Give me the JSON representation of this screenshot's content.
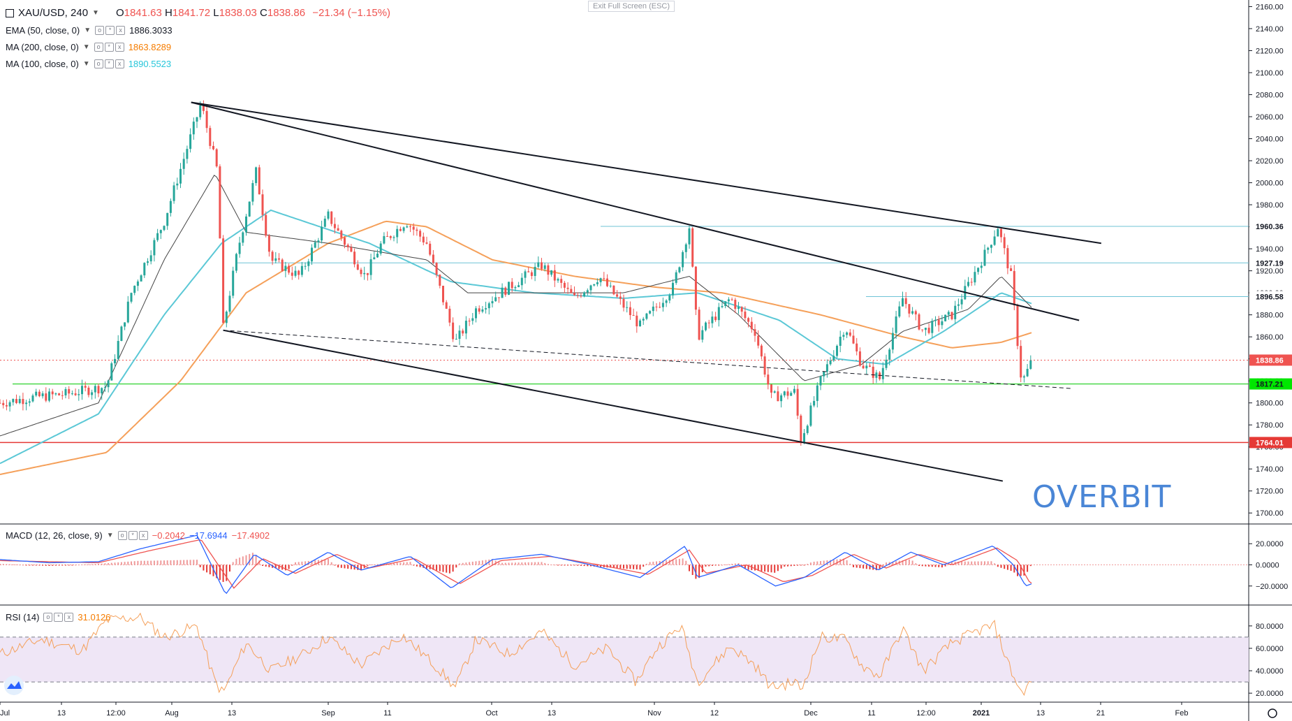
{
  "header": {
    "symbol": "XAU/USD, 240",
    "o_label": "O",
    "o": "1841.63",
    "h_label": "H",
    "h": "1841.72",
    "l_label": "L",
    "l": "1838.03",
    "c_label": "C",
    "c": "1838.86",
    "change": "−21.34 (−1.15%)",
    "exit_fullscreen": "Exit Full Screen (ESC)"
  },
  "indicators": [
    {
      "label": "EMA (50, close, 0)",
      "value": "1886.3033",
      "color": "#131722"
    },
    {
      "label": "MA (200, close, 0)",
      "value": "1863.8289",
      "color": "#f57c00"
    },
    {
      "label": "MA (100, close, 0)",
      "value": "1890.5523",
      "color": "#26c6da"
    }
  ],
  "macd_legend": {
    "label": "MACD (12, 26, close, 9)",
    "hist": "−0.2042",
    "macd": "−17.6944",
    "signal": "−17.4902"
  },
  "rsi_legend": {
    "label": "RSI (14)",
    "value": "31.0126"
  },
  "watermark": "OVERBIT",
  "colors": {
    "up": "#26a69a",
    "down": "#ef5350",
    "ema50": "#444444",
    "ma200": "#f5a05a",
    "ma100": "#5bc8d6",
    "macd": "#2962ff",
    "signal": "#ef5350",
    "rsi": "#f5a05a",
    "support": "#00c800",
    "resistance_red": "#e53935",
    "level": "#6fc3d6"
  },
  "chart_data": {
    "type": "candlestick",
    "instrument": "XAU/USD",
    "timeframe": "240",
    "price_axis": {
      "min": 1690,
      "max": 2166,
      "ticks": [
        1700,
        1720,
        1740,
        1760,
        1780,
        1800,
        1820,
        1840,
        1860,
        1880,
        1900,
        1920,
        1940,
        1960,
        1980,
        2000,
        2020,
        2040,
        2060,
        2080,
        2100,
        2120,
        2140,
        2160
      ]
    },
    "time_axis_labels": [
      "Jul",
      "13",
      "12:00",
      "Aug",
      "13",
      "Sep",
      "11",
      "Oct",
      "13",
      "Nov",
      "12",
      "Dec",
      "11",
      "12:00",
      "2021",
      "13",
      "21",
      "Feb"
    ],
    "price_path": [
      {
        "t": 0,
        "p": 1800
      },
      {
        "t": 40,
        "p": 1805
      },
      {
        "t": 80,
        "p": 1808
      },
      {
        "t": 130,
        "p": 1815
      },
      {
        "t": 160,
        "p": 1900
      },
      {
        "t": 200,
        "p": 1965
      },
      {
        "t": 245,
        "p": 2072
      },
      {
        "t": 265,
        "p": 2010
      },
      {
        "t": 272,
        "p": 1868
      },
      {
        "t": 290,
        "p": 1940
      },
      {
        "t": 312,
        "p": 2010
      },
      {
        "t": 330,
        "p": 1930
      },
      {
        "t": 365,
        "p": 1915
      },
      {
        "t": 400,
        "p": 1970
      },
      {
        "t": 445,
        "p": 1915
      },
      {
        "t": 465,
        "p": 1945
      },
      {
        "t": 495,
        "p": 1965
      },
      {
        "t": 520,
        "p": 1945
      },
      {
        "t": 555,
        "p": 1855
      },
      {
        "t": 580,
        "p": 1885
      },
      {
        "t": 620,
        "p": 1905
      },
      {
        "t": 660,
        "p": 1925
      },
      {
        "t": 700,
        "p": 1895
      },
      {
        "t": 730,
        "p": 1915
      },
      {
        "t": 780,
        "p": 1870
      },
      {
        "t": 820,
        "p": 1905
      },
      {
        "t": 840,
        "p": 1960
      },
      {
        "t": 850,
        "p": 1860
      },
      {
        "t": 890,
        "p": 1895
      },
      {
        "t": 920,
        "p": 1865
      },
      {
        "t": 940,
        "p": 1805
      },
      {
        "t": 968,
        "p": 1810
      },
      {
        "t": 976,
        "p": 1766
      },
      {
        "t": 1000,
        "p": 1820
      },
      {
        "t": 1030,
        "p": 1870
      },
      {
        "t": 1050,
        "p": 1835
      },
      {
        "t": 1072,
        "p": 1822
      },
      {
        "t": 1100,
        "p": 1895
      },
      {
        "t": 1125,
        "p": 1865
      },
      {
        "t": 1160,
        "p": 1880
      },
      {
        "t": 1200,
        "p": 1935
      },
      {
        "t": 1216,
        "p": 1960
      },
      {
        "t": 1232,
        "p": 1915
      },
      {
        "t": 1245,
        "p": 1818
      },
      {
        "t": 1258,
        "p": 1839
      }
    ],
    "ema50_path": [
      {
        "t": 0,
        "p": 1770
      },
      {
        "t": 120,
        "p": 1800
      },
      {
        "t": 200,
        "p": 1930
      },
      {
        "t": 262,
        "p": 2008
      },
      {
        "t": 300,
        "p": 1955
      },
      {
        "t": 400,
        "p": 1945
      },
      {
        "t": 520,
        "p": 1930
      },
      {
        "t": 570,
        "p": 1900
      },
      {
        "t": 650,
        "p": 1900
      },
      {
        "t": 760,
        "p": 1900
      },
      {
        "t": 840,
        "p": 1915
      },
      {
        "t": 900,
        "p": 1880
      },
      {
        "t": 980,
        "p": 1820
      },
      {
        "t": 1050,
        "p": 1835
      },
      {
        "t": 1100,
        "p": 1865
      },
      {
        "t": 1180,
        "p": 1885
      },
      {
        "t": 1220,
        "p": 1915
      },
      {
        "t": 1258,
        "p": 1886
      }
    ],
    "ma100_path": [
      {
        "t": 0,
        "p": 1745
      },
      {
        "t": 120,
        "p": 1790
      },
      {
        "t": 200,
        "p": 1880
      },
      {
        "t": 270,
        "p": 1945
      },
      {
        "t": 330,
        "p": 1975
      },
      {
        "t": 450,
        "p": 1945
      },
      {
        "t": 550,
        "p": 1910
      },
      {
        "t": 650,
        "p": 1900
      },
      {
        "t": 760,
        "p": 1895
      },
      {
        "t": 850,
        "p": 1900
      },
      {
        "t": 950,
        "p": 1875
      },
      {
        "t": 1020,
        "p": 1840
      },
      {
        "t": 1080,
        "p": 1835
      },
      {
        "t": 1150,
        "p": 1865
      },
      {
        "t": 1220,
        "p": 1900
      },
      {
        "t": 1258,
        "p": 1890
      }
    ],
    "ma200_path": [
      {
        "t": 0,
        "p": 1735
      },
      {
        "t": 130,
        "p": 1755
      },
      {
        "t": 220,
        "p": 1820
      },
      {
        "t": 300,
        "p": 1900
      },
      {
        "t": 400,
        "p": 1945
      },
      {
        "t": 470,
        "p": 1965
      },
      {
        "t": 520,
        "p": 1960
      },
      {
        "t": 600,
        "p": 1930
      },
      {
        "t": 700,
        "p": 1915
      },
      {
        "t": 800,
        "p": 1905
      },
      {
        "t": 880,
        "p": 1900
      },
      {
        "t": 1000,
        "p": 1880
      },
      {
        "t": 1100,
        "p": 1860
      },
      {
        "t": 1160,
        "p": 1850
      },
      {
        "t": 1220,
        "p": 1855
      },
      {
        "t": 1258,
        "p": 1864
      }
    ],
    "price_levels": [
      {
        "value": 1960.36,
        "label": "1960.36",
        "kind": "level",
        "bg": "#ffffff",
        "fg": "#131722"
      },
      {
        "value": 1927.19,
        "label": "1927.19",
        "kind": "level",
        "bg": "#ffffff",
        "fg": "#131722"
      },
      {
        "value": 1896.58,
        "label": "1896.58",
        "kind": "level",
        "bg": "#ffffff",
        "fg": "#131722"
      },
      {
        "value": 1838.86,
        "label": "1838.86",
        "kind": "last",
        "bg": "#ef5350",
        "fg": "#ffffff"
      },
      {
        "value": 1817.21,
        "label": "1817.21",
        "kind": "support",
        "bg": "#00e600",
        "fg": "#131722"
      },
      {
        "value": 1764.01,
        "label": "1764.01",
        "kind": "red",
        "bg": "#e53935",
        "fg": "#ffffff"
      }
    ],
    "trendlines": [
      {
        "from": {
          "t": 233,
          "p": 2073
        },
        "to": {
          "t": 1342,
          "p": 1945
        },
        "style": "solid"
      },
      {
        "from": {
          "t": 233,
          "p": 2073
        },
        "to": {
          "t": 1315,
          "p": 1875
        },
        "style": "solid"
      },
      {
        "from": {
          "t": 272,
          "p": 1866
        },
        "to": {
          "t": 1222,
          "p": 1729
        },
        "style": "solid"
      },
      {
        "from": {
          "t": 272,
          "p": 1866
        },
        "to": {
          "t": 1307,
          "p": 1813
        },
        "style": "dashed"
      }
    ],
    "macd_axis": {
      "ticks": [
        20,
        0,
        -20
      ],
      "tick_labels": [
        "20.0000",
        "0.0000",
        "−20.0000"
      ],
      "min": -38,
      "max": 38
    },
    "macd_path": [
      {
        "t": 0,
        "p": 5
      },
      {
        "t": 60,
        "p": 2
      },
      {
        "t": 120,
        "p": 3
      },
      {
        "t": 170,
        "p": 15
      },
      {
        "t": 240,
        "p": 28
      },
      {
        "t": 275,
        "p": -28
      },
      {
        "t": 310,
        "p": 10
      },
      {
        "t": 350,
        "p": -10
      },
      {
        "t": 400,
        "p": 12
      },
      {
        "t": 440,
        "p": -5
      },
      {
        "t": 500,
        "p": 8
      },
      {
        "t": 550,
        "p": -22
      },
      {
        "t": 600,
        "p": 5
      },
      {
        "t": 660,
        "p": 10
      },
      {
        "t": 720,
        "p": 0
      },
      {
        "t": 780,
        "p": -12
      },
      {
        "t": 835,
        "p": 18
      },
      {
        "t": 850,
        "p": -12
      },
      {
        "t": 900,
        "p": 0
      },
      {
        "t": 945,
        "p": -20
      },
      {
        "t": 980,
        "p": -12
      },
      {
        "t": 1030,
        "p": 12
      },
      {
        "t": 1070,
        "p": -5
      },
      {
        "t": 1110,
        "p": 12
      },
      {
        "t": 1150,
        "p": 0
      },
      {
        "t": 1210,
        "p": 18
      },
      {
        "t": 1235,
        "p": 0
      },
      {
        "t": 1250,
        "p": -20
      },
      {
        "t": 1258,
        "p": -17.69
      }
    ],
    "signal_path": [
      {
        "t": 0,
        "p": 4
      },
      {
        "t": 60,
        "p": 3
      },
      {
        "t": 120,
        "p": 2
      },
      {
        "t": 180,
        "p": 13
      },
      {
        "t": 245,
        "p": 24
      },
      {
        "t": 285,
        "p": -22
      },
      {
        "t": 320,
        "p": 6
      },
      {
        "t": 360,
        "p": -8
      },
      {
        "t": 410,
        "p": 10
      },
      {
        "t": 450,
        "p": -3
      },
      {
        "t": 505,
        "p": 6
      },
      {
        "t": 560,
        "p": -18
      },
      {
        "t": 610,
        "p": 4
      },
      {
        "t": 670,
        "p": 8
      },
      {
        "t": 730,
        "p": 0
      },
      {
        "t": 790,
        "p": -9
      },
      {
        "t": 840,
        "p": 14
      },
      {
        "t": 860,
        "p": -8
      },
      {
        "t": 910,
        "p": 0
      },
      {
        "t": 955,
        "p": -16
      },
      {
        "t": 990,
        "p": -10
      },
      {
        "t": 1040,
        "p": 10
      },
      {
        "t": 1080,
        "p": -3
      },
      {
        "t": 1120,
        "p": 10
      },
      {
        "t": 1160,
        "p": 0
      },
      {
        "t": 1215,
        "p": 16
      },
      {
        "t": 1240,
        "p": 4
      },
      {
        "t": 1255,
        "p": -17
      },
      {
        "t": 1258,
        "p": -17.49
      }
    ],
    "rsi_axis": {
      "ticks": [
        80,
        60,
        40,
        20
      ],
      "tick_labels": [
        "80.0000",
        "60.0000",
        "40.0000",
        "20.0000"
      ],
      "min": 12,
      "max": 98,
      "band": [
        30,
        70
      ]
    },
    "rsi_path": [
      {
        "t": 0,
        "p": 55
      },
      {
        "t": 50,
        "p": 68
      },
      {
        "t": 100,
        "p": 58
      },
      {
        "t": 130,
        "p": 85
      },
      {
        "t": 170,
        "p": 88
      },
      {
        "t": 200,
        "p": 70
      },
      {
        "t": 240,
        "p": 80
      },
      {
        "t": 262,
        "p": 30
      },
      {
        "t": 272,
        "p": 20
      },
      {
        "t": 300,
        "p": 65
      },
      {
        "t": 330,
        "p": 40
      },
      {
        "t": 370,
        "p": 55
      },
      {
        "t": 400,
        "p": 70
      },
      {
        "t": 440,
        "p": 45
      },
      {
        "t": 490,
        "p": 72
      },
      {
        "t": 530,
        "p": 45
      },
      {
        "t": 555,
        "p": 25
      },
      {
        "t": 580,
        "p": 68
      },
      {
        "t": 620,
        "p": 55
      },
      {
        "t": 660,
        "p": 75
      },
      {
        "t": 700,
        "p": 45
      },
      {
        "t": 740,
        "p": 60
      },
      {
        "t": 775,
        "p": 30
      },
      {
        "t": 800,
        "p": 60
      },
      {
        "t": 830,
        "p": 80
      },
      {
        "t": 850,
        "p": 30
      },
      {
        "t": 890,
        "p": 62
      },
      {
        "t": 920,
        "p": 45
      },
      {
        "t": 940,
        "p": 25
      },
      {
        "t": 970,
        "p": 30
      },
      {
        "t": 976,
        "p": 22
      },
      {
        "t": 1000,
        "p": 70
      },
      {
        "t": 1030,
        "p": 68
      },
      {
        "t": 1050,
        "p": 45
      },
      {
        "t": 1072,
        "p": 35
      },
      {
        "t": 1100,
        "p": 78
      },
      {
        "t": 1125,
        "p": 40
      },
      {
        "t": 1160,
        "p": 65
      },
      {
        "t": 1200,
        "p": 78
      },
      {
        "t": 1212,
        "p": 80
      },
      {
        "t": 1232,
        "p": 40
      },
      {
        "t": 1245,
        "p": 20
      },
      {
        "t": 1258,
        "p": 31.01
      }
    ]
  }
}
